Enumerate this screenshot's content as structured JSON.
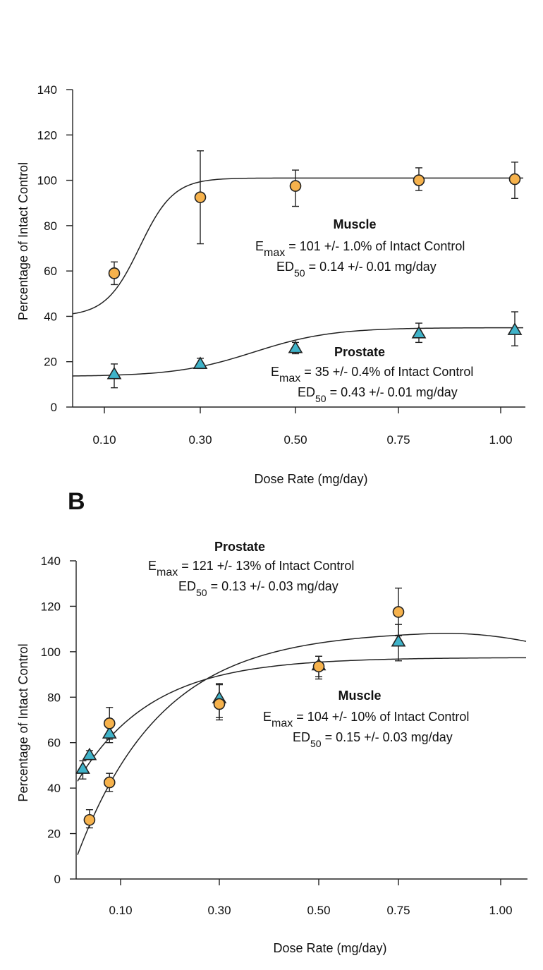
{
  "colors": {
    "muscle_fill": "#F6B24C",
    "prostate_fill": "#3FB3C9",
    "stroke": "#222222",
    "background": "#ffffff"
  },
  "chart_data": [
    {
      "id": "A",
      "panel_label": "",
      "type": "scatter",
      "xlabel": "Dose Rate (mg/day)",
      "ylabel": "Percentage of Intact Control",
      "ylim": [
        0,
        140
      ],
      "yticks": [
        "0",
        "20",
        "40",
        "60",
        "80",
        "100",
        "120",
        "140"
      ],
      "xticks": [
        "0.10",
        "0.30",
        "0.50",
        "0.75",
        "1.00"
      ],
      "series": [
        {
          "name": "Muscle",
          "marker": "circle",
          "points": [
            {
              "x": "0.10",
              "y": 59,
              "err_low": 54,
              "err_high": 64
            },
            {
              "x": "0.30",
              "y": 92.5,
              "err_low": 72,
              "err_high": 113
            },
            {
              "x": "0.50",
              "y": 97.5,
              "err_low": 88.5,
              "err_high": 104.5
            },
            {
              "x": "0.75",
              "y": 100,
              "err_low": 95.5,
              "err_high": 105.5
            },
            {
              "x": "1.00",
              "y": 100.5,
              "err_low": 92,
              "err_high": 108
            }
          ],
          "fit": {
            "emax": 101,
            "ed50": 0.14,
            "baseline": 40,
            "hill": 3.2
          }
        },
        {
          "name": "Prostate",
          "marker": "triangle",
          "points": [
            {
              "x": "0.10",
              "y": 14.5,
              "err_low": 8.5,
              "err_high": 19
            },
            {
              "x": "0.30",
              "y": 19,
              "err_low": 17,
              "err_high": 21.5
            },
            {
              "x": "0.50",
              "y": 26,
              "err_low": 23.5,
              "err_high": 28.5
            },
            {
              "x": "0.75",
              "y": 32.5,
              "err_low": 28.5,
              "err_high": 37
            },
            {
              "x": "1.00",
              "y": 34,
              "err_low": 27,
              "err_high": 42
            }
          ],
          "fit": {
            "emax": 35,
            "ed50": 0.43,
            "baseline": 13.5,
            "hill": 2.5
          }
        }
      ],
      "annotations": {
        "muscle": {
          "title": "Muscle",
          "emax_line": "101 +/- 1.0% of Intact Control",
          "ed50_line": "0.14 +/- 0.01 mg/day"
        },
        "prostate": {
          "title": "Prostate",
          "emax_line": "35 +/- 0.4% of Intact Control",
          "ed50_line": "0.43 +/- 0.01 mg/day"
        }
      }
    },
    {
      "id": "B",
      "panel_label": "B",
      "type": "scatter",
      "xlabel": "Dose Rate (mg/day)",
      "ylabel": "Percentage of Intact Control",
      "ylim": [
        0,
        140
      ],
      "yticks": [
        "0",
        "20",
        "40",
        "60",
        "80",
        "100",
        "120",
        "140"
      ],
      "xticks": [
        "0.10",
        "0.30",
        "0.50",
        "0.75",
        "1.00"
      ],
      "series": [
        {
          "name": "Muscle",
          "marker": "circle",
          "points": [
            {
              "x": 0.03,
              "y": 26,
              "err_low": 22.5,
              "err_high": 30.5
            },
            {
              "x": 0.075,
              "y": 42.5,
              "err_low": 38.5,
              "err_high": 46.5
            },
            {
              "x": 0.075,
              "y": 68.5,
              "err_low": 61.5,
              "err_high": 75.5
            },
            {
              "x": 0.3,
              "y": 77,
              "err_low": 70,
              "err_high": 85.5
            },
            {
              "x": 0.5,
              "y": 93.5,
              "err_low": 89,
              "err_high": 98
            },
            {
              "x": 0.75,
              "y": 117.5,
              "err_low": 107,
              "err_high": 128
            }
          ],
          "fit": {
            "emax": 104,
            "ed50": 0.15
          }
        },
        {
          "name": "Prostate",
          "marker": "triangle",
          "points": [
            {
              "x": 0.015,
              "y": 48.5,
              "err_low": 44,
              "err_high": 52
            },
            {
              "x": 0.03,
              "y": 54.5,
              "err_low": 52.5,
              "err_high": 56.5
            },
            {
              "x": 0.075,
              "y": 64,
              "err_low": 60,
              "err_high": 68
            },
            {
              "x": 0.3,
              "y": 79.5,
              "err_low": 71,
              "err_high": 86
            },
            {
              "x": 0.5,
              "y": 94,
              "err_low": 88,
              "err_high": 98
            },
            {
              "x": 0.75,
              "y": 104.5,
              "err_low": 96,
              "err_high": 112
            }
          ],
          "fit": {
            "emax": 121,
            "ed50": 0.13
          }
        }
      ],
      "annotations": {
        "prostate": {
          "title": "Prostate",
          "emax_line": "121 +/- 13% of Intact Control",
          "ed50_line": "0.13 +/- 0.03 mg/day"
        },
        "muscle": {
          "title": "Muscle",
          "emax_line": "104 +/- 10% of Intact Control",
          "ed50_line": "0.15 +/- 0.03 mg/day"
        }
      }
    }
  ]
}
